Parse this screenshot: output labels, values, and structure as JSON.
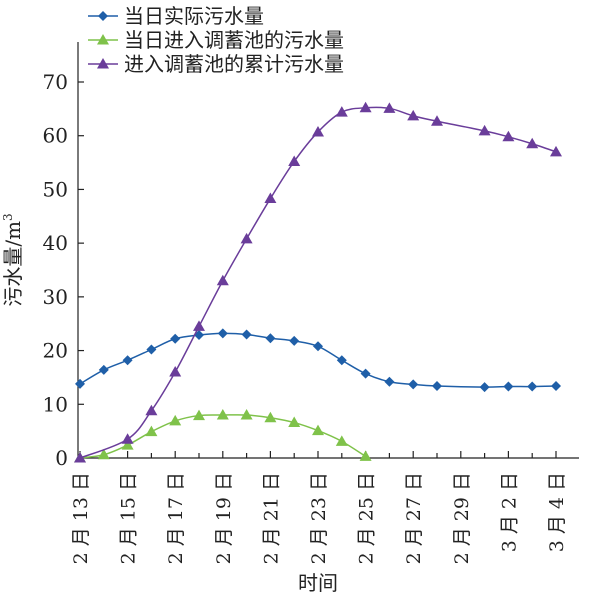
{
  "chart_data": {
    "type": "line",
    "title": "",
    "xlabel": "时间",
    "ylabel": "污水量/m",
    "ylabel_superscript": "3",
    "ylim": [
      0,
      70
    ],
    "yticks": [
      0,
      10,
      20,
      30,
      40,
      50,
      60,
      70
    ],
    "xlim": [
      0,
      20
    ],
    "xticks": [
      {
        "x": 0,
        "label": "2 月 13 日"
      },
      {
        "x": 2,
        "label": "2 月 15 日"
      },
      {
        "x": 4,
        "label": "2 月 17 日"
      },
      {
        "x": 6,
        "label": "2 月 19 日"
      },
      {
        "x": 8,
        "label": "2 月 21 日"
      },
      {
        "x": 10,
        "label": "2 月 23 日"
      },
      {
        "x": 12,
        "label": "2 月 25 日"
      },
      {
        "x": 14,
        "label": "2 月 27 日"
      },
      {
        "x": 16,
        "label": "2 月 29 日"
      },
      {
        "x": 18,
        "label": "3 月 2 日"
      },
      {
        "x": 20,
        "label": "3 月 4 日"
      }
    ],
    "legend_position": "top-left",
    "series": [
      {
        "name": "当日实际污水量",
        "color": "#1f5fa8",
        "marker": "diamond",
        "points": [
          [
            0,
            13.8
          ],
          [
            1,
            16.4
          ],
          [
            2,
            18.2
          ],
          [
            3,
            20.2
          ],
          [
            4,
            22.2
          ],
          [
            5,
            22.9
          ],
          [
            6,
            23.2
          ],
          [
            7,
            23.0
          ],
          [
            8,
            22.3
          ],
          [
            9,
            21.8
          ],
          [
            10,
            20.8
          ],
          [
            11,
            18.2
          ],
          [
            12,
            15.7
          ],
          [
            13,
            14.2
          ],
          [
            14,
            13.7
          ],
          [
            15,
            13.4
          ],
          [
            17,
            13.2
          ],
          [
            18,
            13.3
          ],
          [
            19,
            13.3
          ],
          [
            20,
            13.4
          ]
        ]
      },
      {
        "name": "当日进入调蓄池的污水量",
        "color": "#7fc24a",
        "marker": "triangle",
        "points": [
          [
            0,
            0
          ],
          [
            1,
            0.6
          ],
          [
            2,
            2.4
          ],
          [
            3,
            4.9
          ],
          [
            4,
            6.9
          ],
          [
            5,
            7.9
          ],
          [
            6,
            8.0
          ],
          [
            7,
            8.0
          ],
          [
            8,
            7.5
          ],
          [
            9,
            6.6
          ],
          [
            10,
            5.1
          ],
          [
            11,
            3.1
          ],
          [
            12,
            0.3
          ]
        ]
      },
      {
        "name": "进入调蓄池的累计污水量",
        "color": "#6a3d9a",
        "marker": "triangle",
        "points": [
          [
            0,
            0
          ],
          [
            2,
            3.5
          ],
          [
            3,
            8.8
          ],
          [
            4,
            16.0
          ],
          [
            5,
            24.5
          ],
          [
            6,
            33.0
          ],
          [
            7,
            40.8
          ],
          [
            8,
            48.3
          ],
          [
            9,
            55.2
          ],
          [
            10,
            60.7
          ],
          [
            11,
            64.4
          ],
          [
            12,
            65.2
          ],
          [
            13,
            65.1
          ],
          [
            14,
            63.7
          ],
          [
            15,
            62.7
          ],
          [
            17,
            60.9
          ],
          [
            18,
            59.8
          ],
          [
            19,
            58.5
          ],
          [
            20,
            57.0
          ]
        ]
      }
    ]
  }
}
